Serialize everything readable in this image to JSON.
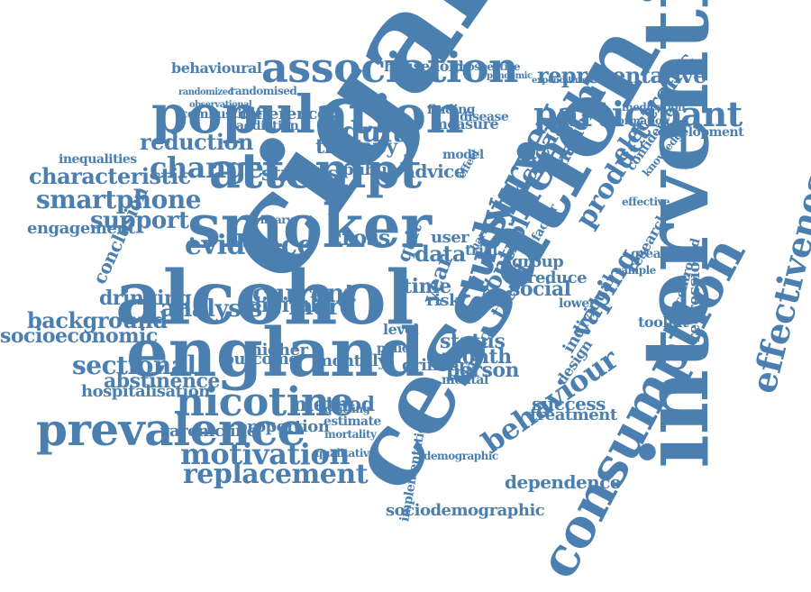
{
  "theme": {
    "word_color": "#4a7fb0",
    "background": "#ffffff"
  },
  "words": [
    "cigarette",
    "cessation",
    "intervention",
    "consumption",
    "effectiveness",
    "alcohol",
    "england",
    "smoker",
    "population",
    "association",
    "attempt",
    "prevalence",
    "nicotine",
    "participant",
    "survey",
    "health",
    "study",
    "representative",
    "adult",
    "change",
    "reduction",
    "characteristic",
    "smartphone",
    "support",
    "evidence",
    "cross",
    "current",
    "digital",
    "more",
    "analysis",
    "sectional",
    "background",
    "socioeconomic",
    "abstinence",
    "hospitalisation",
    "motivation",
    "replacement",
    "varenicline",
    "proportion",
    "method",
    "success",
    "treatment",
    "dependence",
    "behaviour",
    "vaping",
    "product",
    "electronic",
    "national",
    "increase",
    "control",
    "trend",
    "social",
    "group",
    "reduce",
    "month",
    "person",
    "status",
    "data",
    "user",
    "year",
    "public",
    "advice",
    "studies",
    "therapy",
    "difference",
    "addiction",
    "combustible",
    "behavioural",
    "household",
    "randomised",
    "development",
    "engagement",
    "drinking",
    "conclusion",
    "outcome",
    "higher",
    "monthly",
    "drinker",
    "mental",
    "policy",
    "level",
    "time",
    "risk",
    "sociodemographic",
    "inequalities",
    "regression",
    "randomized",
    "observational",
    "prospective",
    "pandemic",
    "expenditure",
    "medication",
    "information",
    "finding",
    "measure",
    "disease",
    "model",
    "impact",
    "quit",
    "harm",
    "trial",
    "estimate",
    "mortality",
    "primary",
    "quitting",
    "demographic",
    "qualitative",
    "implementation",
    "toolkit",
    "research",
    "individual",
    "design",
    "effect",
    "factor",
    "greater",
    "lower",
    "sample",
    "knowledge",
    "confidence",
    "controlled",
    "effective"
  ]
}
